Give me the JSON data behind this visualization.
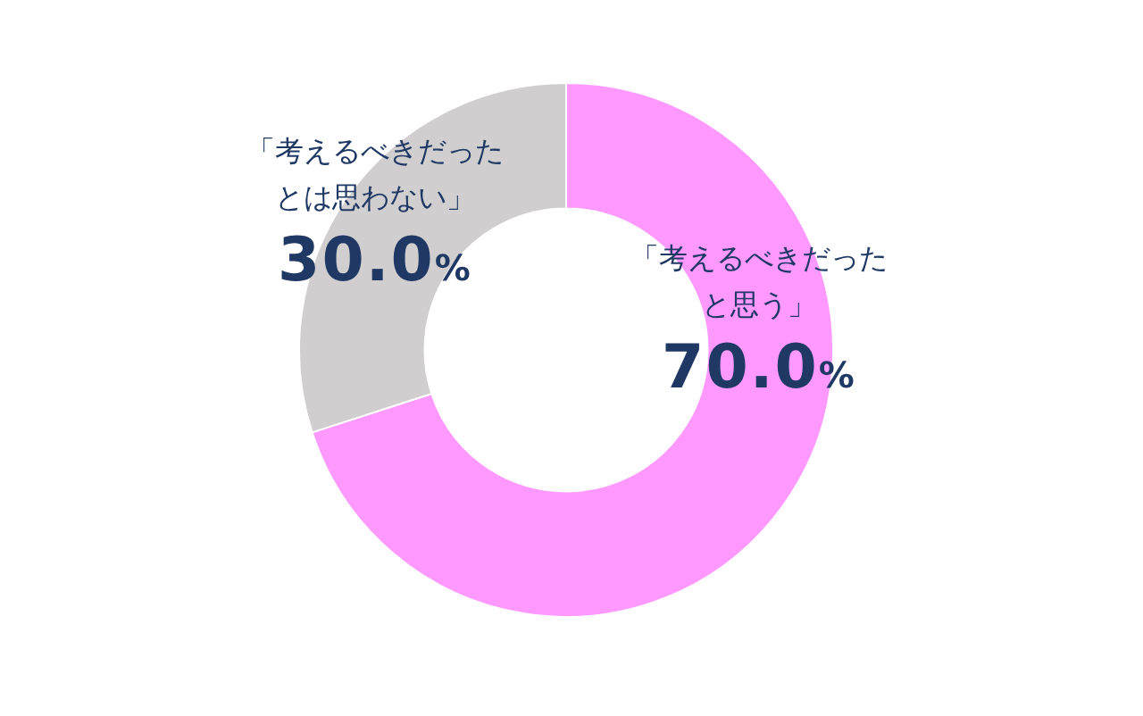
{
  "chart_data": {
    "type": "donut",
    "categories": [
      "「考えるべきだったと思う」",
      "「考えるべきだったとは思わない」"
    ],
    "values": [
      70.0,
      30.0
    ],
    "colors": [
      "#ff99ff",
      "#d0cece"
    ],
    "value_labels": [
      "70.0%",
      "30.0%"
    ],
    "legend": false
  }
}
